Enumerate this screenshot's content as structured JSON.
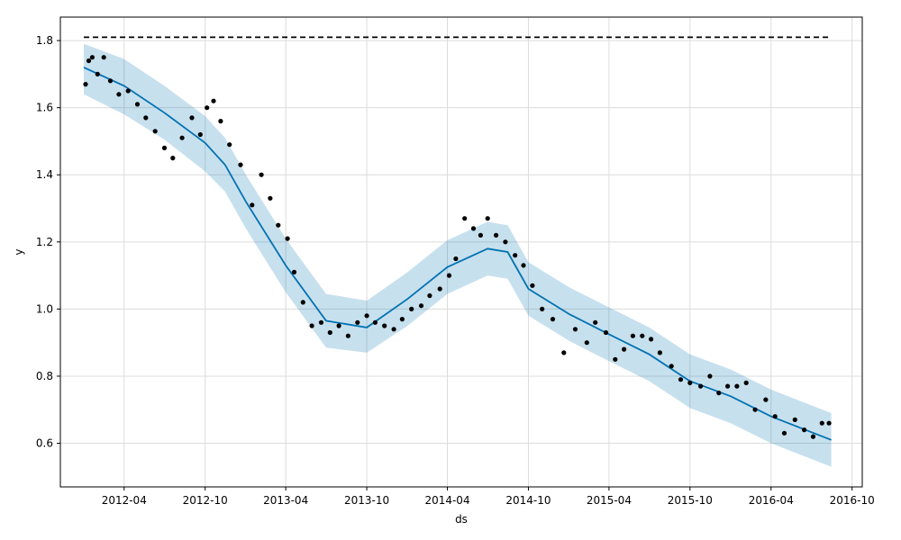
{
  "chart_data": {
    "type": "line",
    "title": "",
    "xlabel": "ds",
    "ylabel": "y",
    "xlim": [
      "2011-11-09",
      "2016-10-24"
    ],
    "ylim": [
      0.47,
      1.87
    ],
    "x_ticks": [
      "2012-04",
      "2012-10",
      "2013-04",
      "2013-10",
      "2014-04",
      "2014-10",
      "2015-04",
      "2015-10",
      "2016-04",
      "2016-10"
    ],
    "y_ticks": [
      0.6,
      0.8,
      1.0,
      1.2,
      1.4,
      1.6,
      1.8
    ],
    "grid": true,
    "colors": {
      "forecast_line": "#0072B2",
      "uncertainty_band": "#0072B2",
      "observed_points": "#000000",
      "cap_line": "#000000",
      "grid": "#dcdcdc"
    },
    "series": [
      {
        "kind": "forecast",
        "x": [
          "2012-01-01",
          "2012-04-01",
          "2012-07-01",
          "2012-10-01",
          "2012-11-15",
          "2013-01-01",
          "2013-04-01",
          "2013-07-01",
          "2013-10-01",
          "2014-01-01",
          "2014-04-01",
          "2014-07-01",
          "2014-08-15",
          "2014-10-01",
          "2015-01-01",
          "2015-04-01",
          "2015-07-01",
          "2015-10-01",
          "2016-01-01",
          "2016-04-01",
          "2016-08-15"
        ],
        "y": [
          1.72,
          1.665,
          1.585,
          1.495,
          1.43,
          1.32,
          1.13,
          0.965,
          0.945,
          1.03,
          1.125,
          1.18,
          1.17,
          1.06,
          0.985,
          0.925,
          0.865,
          0.785,
          0.74,
          0.68,
          0.61
        ],
        "lower": [
          1.64,
          1.58,
          1.505,
          1.41,
          1.35,
          1.24,
          1.05,
          0.885,
          0.87,
          0.95,
          1.045,
          1.1,
          1.09,
          0.98,
          0.905,
          0.845,
          0.785,
          0.705,
          0.66,
          0.6,
          0.53
        ],
        "upper": [
          1.79,
          1.745,
          1.665,
          1.575,
          1.51,
          1.4,
          1.21,
          1.045,
          1.025,
          1.11,
          1.205,
          1.26,
          1.25,
          1.14,
          1.065,
          1.005,
          0.945,
          0.865,
          0.82,
          0.76,
          0.69
        ]
      },
      {
        "kind": "cap",
        "x": [
          "2012-01-01",
          "2016-08-15"
        ],
        "y": [
          1.81,
          1.81
        ]
      },
      {
        "kind": "observed",
        "x": [
          "2012-01-05",
          "2012-01-12",
          "2012-01-20",
          "2012-02-01",
          "2012-02-15",
          "2012-03-01",
          "2012-03-20",
          "2012-04-10",
          "2012-05-01",
          "2012-05-20",
          "2012-06-10",
          "2012-07-01",
          "2012-07-20",
          "2012-08-10",
          "2012-09-01",
          "2012-09-20",
          "2012-10-05",
          "2012-10-20",
          "2012-11-05",
          "2012-11-25",
          "2012-12-20",
          "2013-01-15",
          "2013-02-05",
          "2013-02-25",
          "2013-03-15",
          "2013-04-05",
          "2013-04-20",
          "2013-05-10",
          "2013-05-30",
          "2013-06-20",
          "2013-07-10",
          "2013-07-30",
          "2013-08-20",
          "2013-09-10",
          "2013-10-01",
          "2013-10-20",
          "2013-11-10",
          "2013-12-01",
          "2013-12-20",
          "2014-01-10",
          "2014-02-01",
          "2014-02-20",
          "2014-03-15",
          "2014-04-05",
          "2014-04-20",
          "2014-05-10",
          "2014-05-30",
          "2014-06-15",
          "2014-07-01",
          "2014-07-20",
          "2014-08-10",
          "2014-09-01",
          "2014-09-20",
          "2014-10-10",
          "2014-11-01",
          "2014-11-25",
          "2014-12-20",
          "2015-01-15",
          "2015-02-10",
          "2015-03-01",
          "2015-03-25",
          "2015-04-15",
          "2015-05-05",
          "2015-05-25",
          "2015-06-15",
          "2015-07-05",
          "2015-07-25",
          "2015-08-20",
          "2015-09-10",
          "2015-10-01",
          "2015-10-25",
          "2015-11-15",
          "2015-12-05",
          "2015-12-25",
          "2016-01-15",
          "2016-02-05",
          "2016-02-25",
          "2016-03-20",
          "2016-04-10",
          "2016-05-01",
          "2016-05-25",
          "2016-06-15",
          "2016-07-05",
          "2016-07-25",
          "2016-08-10"
        ],
        "y": [
          1.67,
          1.74,
          1.75,
          1.7,
          1.75,
          1.68,
          1.64,
          1.65,
          1.61,
          1.57,
          1.53,
          1.48,
          1.45,
          1.51,
          1.57,
          1.52,
          1.6,
          1.62,
          1.56,
          1.49,
          1.43,
          1.31,
          1.4,
          1.33,
          1.25,
          1.21,
          1.11,
          1.02,
          0.95,
          0.96,
          0.93,
          0.95,
          0.92,
          0.96,
          0.98,
          0.96,
          0.95,
          0.94,
          0.97,
          1.0,
          1.01,
          1.04,
          1.06,
          1.1,
          1.15,
          1.27,
          1.24,
          1.22,
          1.27,
          1.22,
          1.2,
          1.16,
          1.13,
          1.07,
          1.0,
          0.97,
          0.87,
          0.94,
          0.9,
          0.96,
          0.93,
          0.85,
          0.88,
          0.92,
          0.92,
          0.91,
          0.87,
          0.83,
          0.79,
          0.78,
          0.77,
          0.8,
          0.75,
          0.77,
          0.77,
          0.78,
          0.7,
          0.73,
          0.68,
          0.63,
          0.67,
          0.64,
          0.62,
          0.66,
          0.66
        ]
      }
    ]
  }
}
